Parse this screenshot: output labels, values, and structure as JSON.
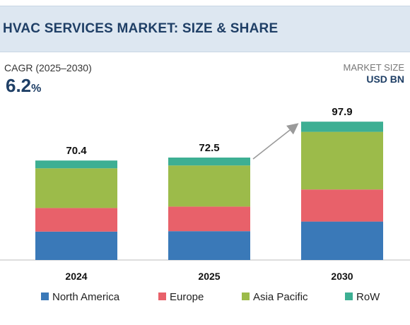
{
  "header": {
    "title": "HVAC SERVICES MARKET: SIZE & SHARE"
  },
  "cagr": {
    "label": "CAGR (2025–2030)",
    "value": "6.2",
    "unit": "%"
  },
  "market_size": {
    "label": "MARKET SIZE",
    "unit": "USD BN"
  },
  "colors": {
    "North America": "#3a79b8",
    "Europe": "#e8616a",
    "Asia Pacific": "#9cbb4a",
    "RoW": "#3daf93",
    "header_bg": "#dde7f1",
    "title": "#1f3f66",
    "arrow": "#9a9a9a"
  },
  "chart_data": {
    "type": "bar",
    "stacked": true,
    "categories": [
      "2024",
      "2025",
      "2030"
    ],
    "totals": [
      "70.4",
      "72.5",
      "97.9"
    ],
    "series": [
      {
        "name": "North America",
        "values": [
          20.1,
          20.4,
          27.2
        ]
      },
      {
        "name": "Europe",
        "values": [
          16.7,
          17.4,
          22.7
        ]
      },
      {
        "name": "Asia Pacific",
        "values": [
          28.1,
          29.1,
          40.8
        ]
      },
      {
        "name": "RoW",
        "values": [
          5.5,
          5.6,
          7.2
        ]
      }
    ],
    "ylim": [
      0,
      100
    ],
    "legend_position": "bottom",
    "grid": false,
    "annotation": "arrow from 2025 bar to 2030 bar"
  }
}
